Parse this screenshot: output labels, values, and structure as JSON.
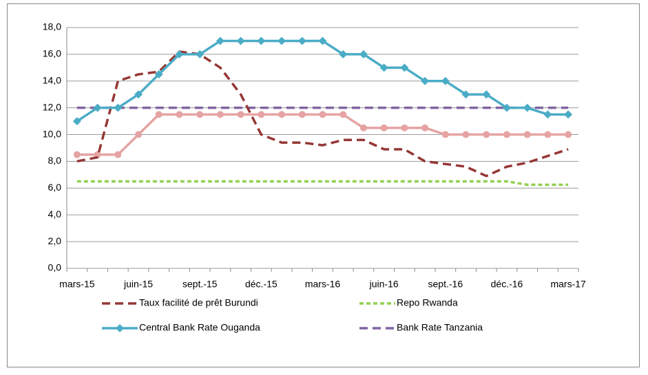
{
  "chart_data": {
    "type": "line",
    "categories": [
      "mars-15",
      null,
      null,
      "juin-15",
      null,
      null,
      "sept.-15",
      null,
      null,
      "déc.-15",
      null,
      null,
      "mars-16",
      null,
      null,
      "juin-16",
      null,
      null,
      "sept.-16",
      null,
      null,
      "déc.-16",
      null,
      null,
      "mars-17"
    ],
    "series": [
      {
        "name": "Taux facilité de prêt  Burundi",
        "color": "#953735",
        "dash": true,
        "values": [
          8,
          8.3,
          14,
          14.5,
          14.7,
          16.2,
          16,
          15,
          13,
          10,
          9.4,
          9.4,
          9.2,
          9.6,
          9.6,
          8.9,
          8.9,
          8,
          7.8,
          7.6,
          6.9,
          7.6,
          7.9,
          8.4,
          8.9
        ]
      },
      {
        "name": "Repo Rwanda",
        "color": "#92d050",
        "dash": true,
        "values": [
          6.5,
          6.5,
          6.5,
          6.5,
          6.5,
          6.5,
          6.5,
          6.5,
          6.5,
          6.5,
          6.5,
          6.5,
          6.5,
          6.5,
          6.5,
          6.5,
          6.5,
          6.5,
          6.5,
          6.5,
          6.5,
          6.5,
          6.25,
          6.25,
          6.25
        ]
      },
      {
        "name": "Central Bank Rate Ouganda",
        "color": "#4bacc6",
        "marker": "diamond",
        "values": [
          11,
          12,
          12,
          13,
          14.5,
          16,
          16,
          17,
          17,
          17,
          17,
          17,
          17,
          16,
          16,
          15,
          15,
          14,
          14,
          13,
          13,
          12,
          12,
          11.5,
          11.5
        ]
      },
      {
        "name": "Bank Rate Tanzania",
        "color": "#8064a2",
        "dash": true,
        "values": [
          12,
          12,
          12,
          12,
          12,
          12,
          12,
          12,
          12,
          12,
          12,
          12,
          12,
          12,
          12,
          12,
          12,
          12,
          12,
          12,
          12,
          12,
          12,
          12,
          12
        ]
      },
      {
        "color": "#e6a3a3",
        "marker": "circle",
        "values": [
          8.5,
          8.5,
          8.5,
          10,
          11.5,
          11.5,
          11.5,
          11.5,
          11.5,
          11.5,
          11.5,
          11.5,
          11.5,
          11.5,
          10.5,
          10.5,
          10.5,
          10.5,
          10,
          10,
          10,
          10,
          10,
          10,
          10
        ]
      }
    ],
    "ylim": [
      0,
      18
    ],
    "yticks": [
      {
        "value": 0,
        "label": "0,0"
      },
      {
        "value": 2,
        "label": "2,0"
      },
      {
        "value": 4,
        "label": "4,0"
      },
      {
        "value": 6,
        "label": "6,0"
      },
      {
        "value": 8,
        "label": "8,0"
      },
      {
        "value": 10,
        "label": "10,0"
      },
      {
        "value": 12,
        "label": "12,0"
      },
      {
        "value": 14,
        "label": "14,0"
      },
      {
        "value": 16,
        "label": "16,0"
      },
      {
        "value": 18,
        "label": "18,0"
      }
    ],
    "grid": true
  }
}
